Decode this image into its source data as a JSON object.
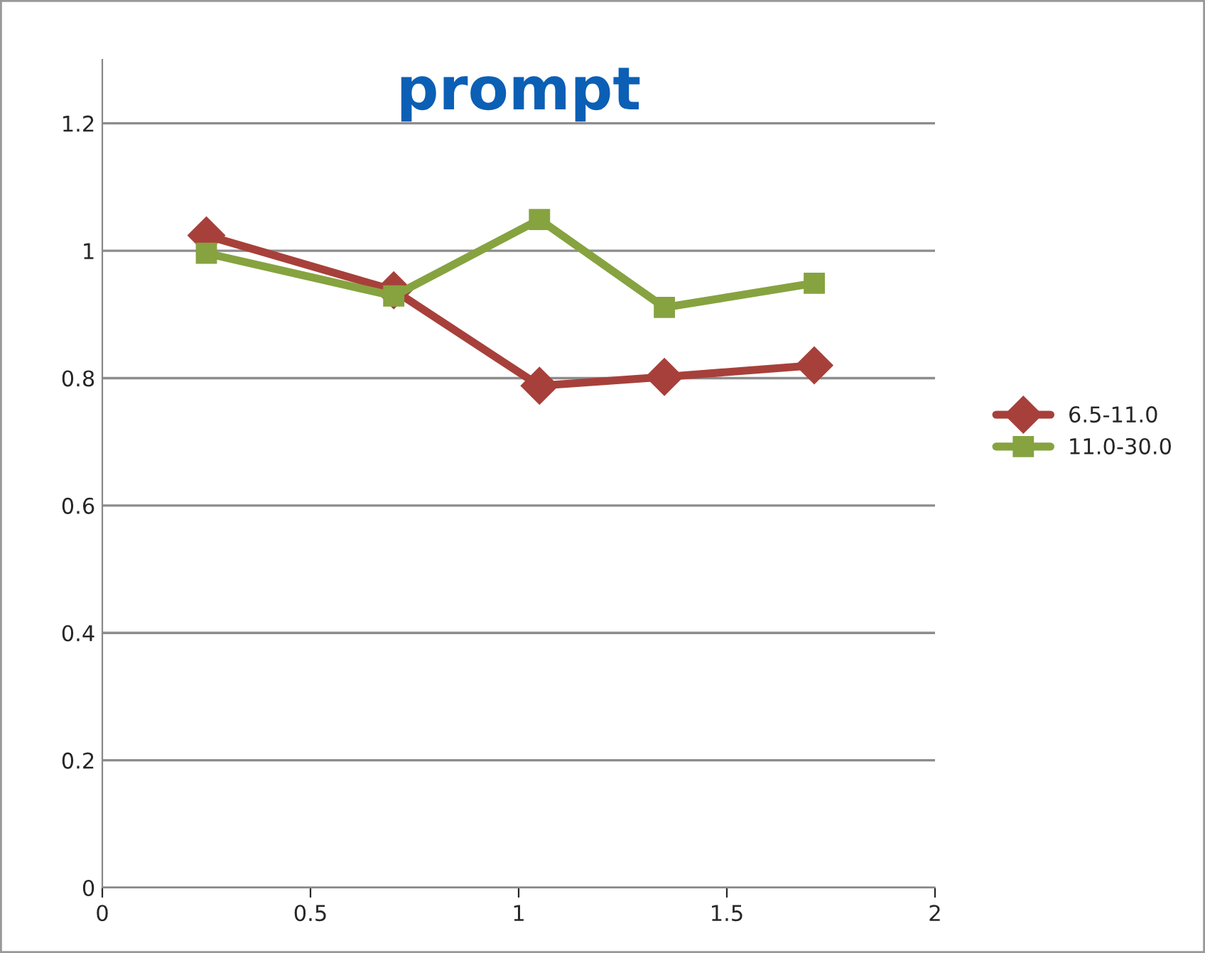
{
  "chart_data": {
    "type": "line",
    "title": "prompt",
    "x": [
      0.25,
      0.7,
      1.05,
      1.35,
      1.71
    ],
    "series": [
      {
        "name": "6.5-11.0",
        "color": "#a7403a",
        "marker": "diamond",
        "values": [
          1.024,
          0.938,
          0.788,
          0.802,
          0.82
        ]
      },
      {
        "name": "11.0-30.0",
        "color": "#86a340",
        "marker": "square",
        "values": [
          0.996,
          0.929,
          1.049,
          0.911,
          0.949
        ]
      }
    ],
    "xlim": [
      0,
      2
    ],
    "xticks": [
      0,
      0.5,
      1,
      1.5,
      2
    ],
    "ylim": [
      0,
      1.3
    ],
    "yticks": [
      0,
      0.2,
      0.4,
      0.6,
      0.8,
      1,
      1.2
    ],
    "grid": "y",
    "legend": "right",
    "line_style": "solid"
  }
}
